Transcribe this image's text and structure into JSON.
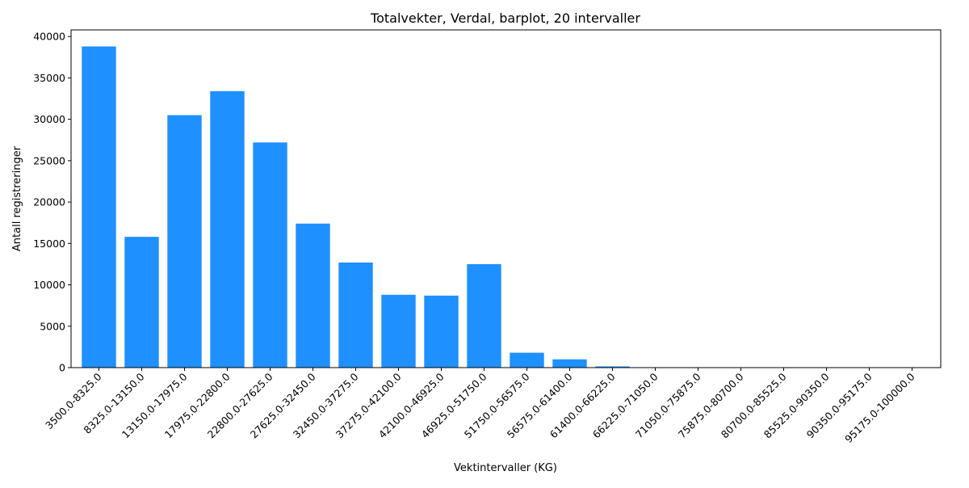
{
  "chart_data": {
    "type": "bar",
    "title": "Totalvekter, Verdal, barplot, 20 intervaller",
    "xlabel": "Vektintervaller (KG)",
    "ylabel": "Antall registreringer",
    "categories": [
      "3500.0-8325.0",
      "8325.0-13150.0",
      "13150.0-17975.0",
      "17975.0-22800.0",
      "22800.0-27625.0",
      "27625.0-32450.0",
      "32450.0-37275.0",
      "37275.0-42100.0",
      "42100.0-46925.0",
      "46925.0-51750.0",
      "51750.0-56575.0",
      "56575.0-61400.0",
      "61400.0-66225.0",
      "66225.0-71050.0",
      "71050.0-75875.0",
      "75875.0-80700.0",
      "80700.0-85525.0",
      "85525.0-90350.0",
      "90350.0-95175.0",
      "95175.0-100000.0"
    ],
    "values": [
      38800,
      15800,
      30500,
      33400,
      27200,
      17400,
      12700,
      8800,
      8700,
      12500,
      1800,
      1000,
      150,
      0,
      0,
      0,
      0,
      0,
      0,
      0
    ],
    "ylim": [
      0,
      40800
    ],
    "yticks": [
      0,
      5000,
      10000,
      15000,
      20000,
      25000,
      30000,
      35000,
      40000
    ],
    "bar_color": "#1e90ff",
    "grid": false,
    "legend": "none"
  }
}
